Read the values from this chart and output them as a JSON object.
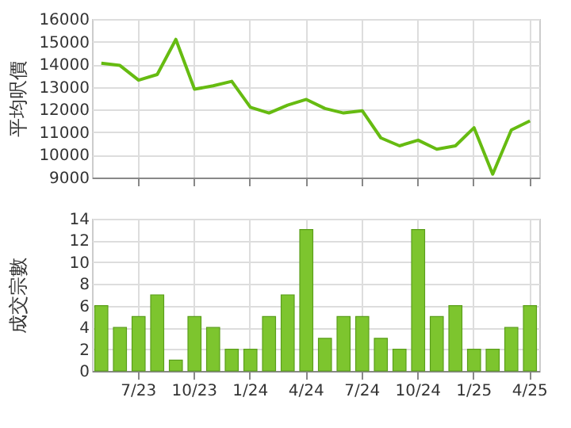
{
  "chart_data": [
    {
      "type": "line",
      "ylabel": "平均呎價",
      "categories": [
        null,
        null,
        null,
        null,
        null,
        null,
        null,
        null,
        null,
        null,
        null,
        null,
        null,
        null,
        null,
        null,
        null,
        null,
        null,
        null,
        null,
        null,
        null,
        null
      ],
      "series": [
        {
          "color": "#66bb11",
          "values": [
            14050,
            13950,
            13300,
            13550,
            15100,
            12900,
            13050,
            13250,
            12100,
            11850,
            12200,
            12450,
            12050,
            11850,
            11950,
            10750,
            10400,
            10650,
            10250,
            10400,
            11200,
            9150,
            11100,
            11500
          ]
        }
      ],
      "ylim": [
        9000,
        16000
      ],
      "yticks": [
        9000,
        10000,
        11000,
        12000,
        13000,
        14000,
        15000,
        16000
      ],
      "grid": true,
      "marker": "none",
      "line_style": "solid",
      "tick_labels": "y"
    },
    {
      "type": "bar",
      "ylabel": "成交宗數",
      "categories": [
        null,
        null,
        "7/23",
        null,
        null,
        "10/23",
        null,
        null,
        "1/24",
        null,
        null,
        "4/24",
        null,
        null,
        "7/24",
        null,
        null,
        "10/24",
        null,
        null,
        "1/25",
        null,
        null,
        "4/25"
      ],
      "series": [
        {
          "color": "#7dc52e",
          "values": [
            6,
            4,
            5,
            7,
            1,
            5,
            4,
            2,
            2,
            5,
            7,
            13,
            3,
            5,
            5,
            3,
            2,
            13,
            5,
            6,
            2,
            2,
            4,
            6
          ]
        }
      ],
      "ylim": [
        0,
        14
      ],
      "yticks": [
        0,
        2,
        4,
        6,
        8,
        10,
        12,
        14
      ],
      "grid": true
    }
  ]
}
